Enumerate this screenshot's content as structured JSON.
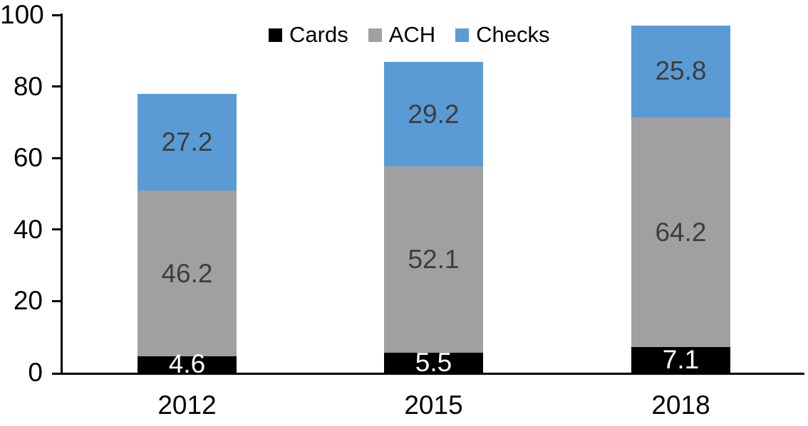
{
  "chart_data": {
    "type": "bar",
    "stacked": true,
    "categories": [
      "2012",
      "2015",
      "2018"
    ],
    "series": [
      {
        "name": "Cards",
        "color": "#000000",
        "label_color": "#ffffff",
        "values": [
          4.6,
          5.5,
          7.1
        ]
      },
      {
        "name": "ACH",
        "color": "#A0A0A0",
        "label_color": "#3d3d3d",
        "values": [
          46.2,
          52.1,
          64.2
        ]
      },
      {
        "name": "Checks",
        "color": "#5B9BD5",
        "label_color": "#3d3d3d",
        "values": [
          27.2,
          29.2,
          25.8
        ]
      }
    ],
    "y_ticks": [
      0,
      20,
      40,
      60,
      80,
      100
    ],
    "ylim": [
      0,
      100
    ],
    "grid": false,
    "legend_position": "top",
    "legend_labels": [
      "Cards",
      "ACH",
      "Checks"
    ],
    "axis_color": "#000000",
    "data_labels_shown": true
  }
}
